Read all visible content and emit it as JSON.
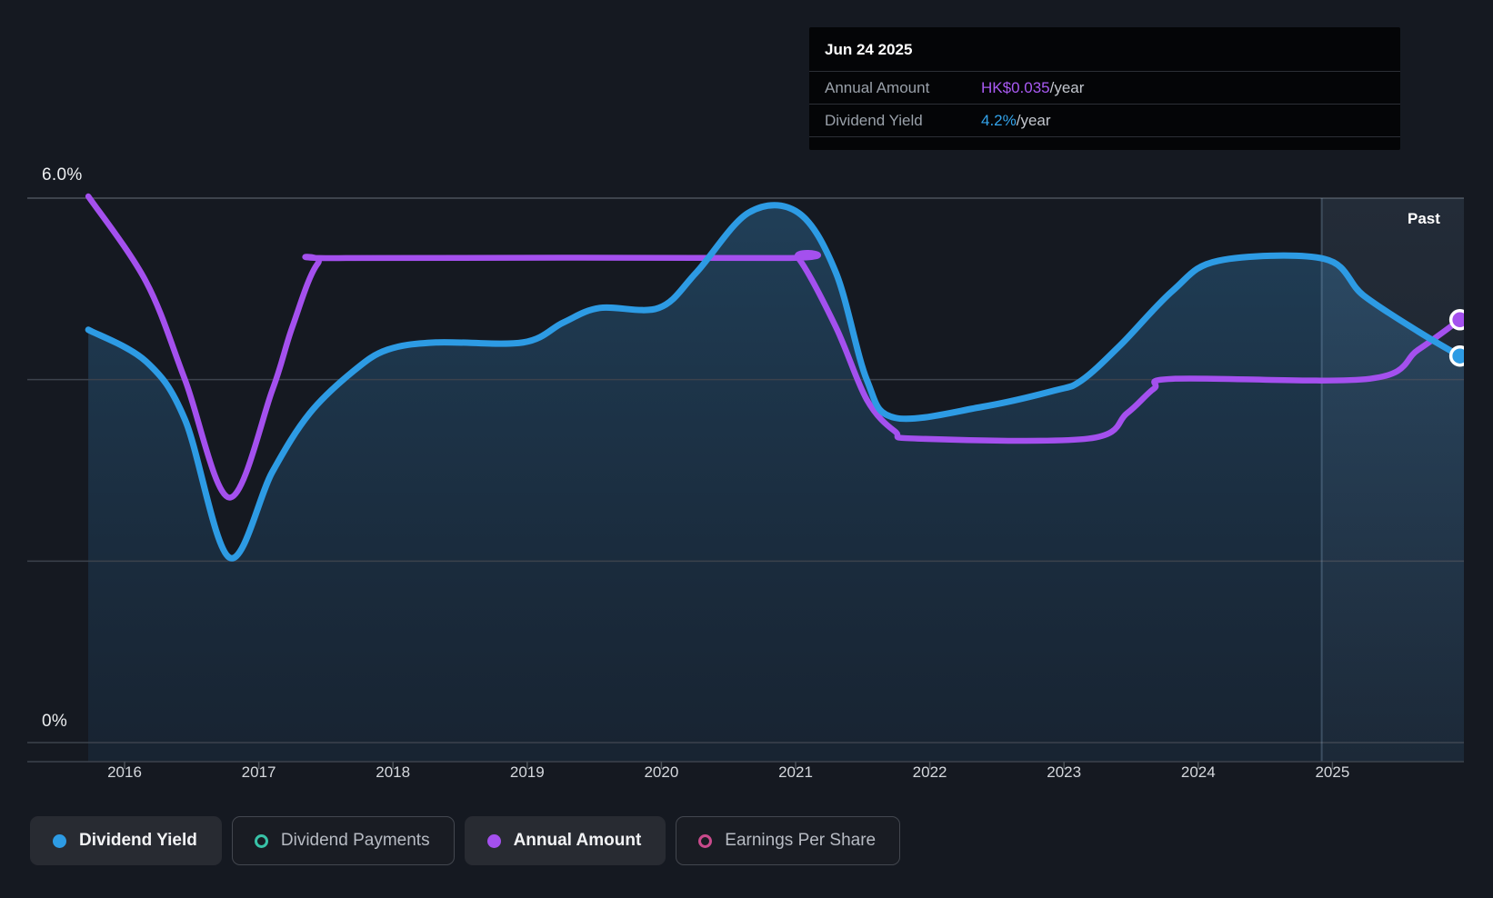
{
  "tooltip": {
    "date": "Jun 24 2025",
    "rows": [
      {
        "label": "Annual Amount",
        "value": "HK$0.035",
        "suffix": "/year",
        "color": "#a85af2"
      },
      {
        "label": "Dividend Yield",
        "value": "4.2%",
        "suffix": "/year",
        "color": "#33a3ea"
      }
    ]
  },
  "past_label": "Past",
  "axis": {
    "y_top_label": "6.0%",
    "y_bottom_label": "0%",
    "years": [
      "2016",
      "2017",
      "2018",
      "2019",
      "2020",
      "2021",
      "2022",
      "2023",
      "2024",
      "2025"
    ]
  },
  "legend": [
    {
      "label": "Dividend Yield",
      "color": "#2d9be4",
      "style": "filled",
      "active": true
    },
    {
      "label": "Dividend Payments",
      "color": "#38c2a7",
      "style": "ring",
      "active": false
    },
    {
      "label": "Annual Amount",
      "color": "#a450ee",
      "style": "filled",
      "active": true
    },
    {
      "label": "Earnings Per Share",
      "color": "#c94a8c",
      "style": "ring",
      "active": false
    }
  ],
  "colors": {
    "background": "#151921",
    "gridline": "#3c424c",
    "gridline_top": "#4d535c",
    "axis_line": "#3c424c",
    "tick": "#4b5158",
    "blue": "#2d9be4",
    "purple": "#a450ee",
    "area_top": "rgba(52,130,185,0.36)",
    "area_bottom": "rgba(38,90,135,0.16)",
    "past_top": "rgba(130,170,210,0.13)",
    "past_bottom": "rgba(130,170,210,0.04)",
    "past_divider": "rgba(165,200,230,0.25)",
    "marker_ring": "#ffffff"
  },
  "chart_data": {
    "type": "line",
    "title": "Dividend yield history with annual dividend amount",
    "x_axis": {
      "ticks": [
        "2016",
        "2017",
        "2018",
        "2019",
        "2020",
        "2021",
        "2022",
        "2023",
        "2024",
        "2025"
      ],
      "range_years": [
        2015.73,
        2025.98
      ]
    },
    "y_axis": {
      "top_tick_label": "6.0%",
      "bottom_tick_label": "0%",
      "ylim": [
        0,
        6
      ],
      "gridlines_pct": [
        0,
        2,
        4,
        6
      ],
      "unit": "%"
    },
    "past_region": {
      "label": "Past",
      "start_year": 2024.92
    },
    "legend_position": "bottom",
    "current_point": {
      "date": "Jun 24 2025",
      "annual_amount": "HK$0.035/year",
      "dividend_yield_pct": 4.2
    },
    "series": [
      {
        "name": "Dividend Yield",
        "color": "#2d9be4",
        "unit": "%",
        "area_fill": true,
        "end_marker": true,
        "points": [
          [
            2015.73,
            4.55
          ],
          [
            2016.16,
            4.2
          ],
          [
            2016.45,
            3.56
          ],
          [
            2016.78,
            2.04
          ],
          [
            2017.1,
            2.98
          ],
          [
            2017.38,
            3.63
          ],
          [
            2017.71,
            4.1
          ],
          [
            2017.96,
            4.33
          ],
          [
            2018.32,
            4.41
          ],
          [
            2018.97,
            4.41
          ],
          [
            2019.27,
            4.63
          ],
          [
            2019.54,
            4.79
          ],
          [
            2019.98,
            4.79
          ],
          [
            2020.26,
            5.18
          ],
          [
            2020.65,
            5.84
          ],
          [
            2021.02,
            5.84
          ],
          [
            2021.3,
            5.18
          ],
          [
            2021.53,
            4.0
          ],
          [
            2021.74,
            3.58
          ],
          [
            2022.39,
            3.7
          ],
          [
            2022.93,
            3.88
          ],
          [
            2023.13,
            3.99
          ],
          [
            2023.42,
            4.38
          ],
          [
            2023.81,
            4.98
          ],
          [
            2024.15,
            5.31
          ],
          [
            2024.94,
            5.33
          ],
          [
            2025.23,
            4.93
          ],
          [
            2025.64,
            4.53
          ],
          [
            2025.95,
            4.26
          ]
        ]
      },
      {
        "name": "Annual Amount",
        "color": "#a450ee",
        "unit": "plotted on hidden HK$ scale; values below are %-axis equivalents",
        "area_fill": false,
        "end_marker": true,
        "points": [
          [
            2015.73,
            6.02
          ],
          [
            2016.16,
            5.08
          ],
          [
            2016.45,
            4.0
          ],
          [
            2016.78,
            2.7
          ],
          [
            2017.1,
            3.88
          ],
          [
            2017.25,
            4.58
          ],
          [
            2017.44,
            5.28
          ],
          [
            2017.65,
            5.34
          ],
          [
            2020.9,
            5.34
          ],
          [
            2021.02,
            5.34
          ],
          [
            2021.3,
            4.58
          ],
          [
            2021.53,
            3.78
          ],
          [
            2021.74,
            3.43
          ],
          [
            2021.91,
            3.35
          ],
          [
            2023.18,
            3.35
          ],
          [
            2023.47,
            3.63
          ],
          [
            2023.67,
            3.9
          ],
          [
            2023.83,
            4.01
          ],
          [
            2025.28,
            4.01
          ],
          [
            2025.64,
            4.33
          ],
          [
            2025.95,
            4.66
          ]
        ]
      }
    ]
  }
}
